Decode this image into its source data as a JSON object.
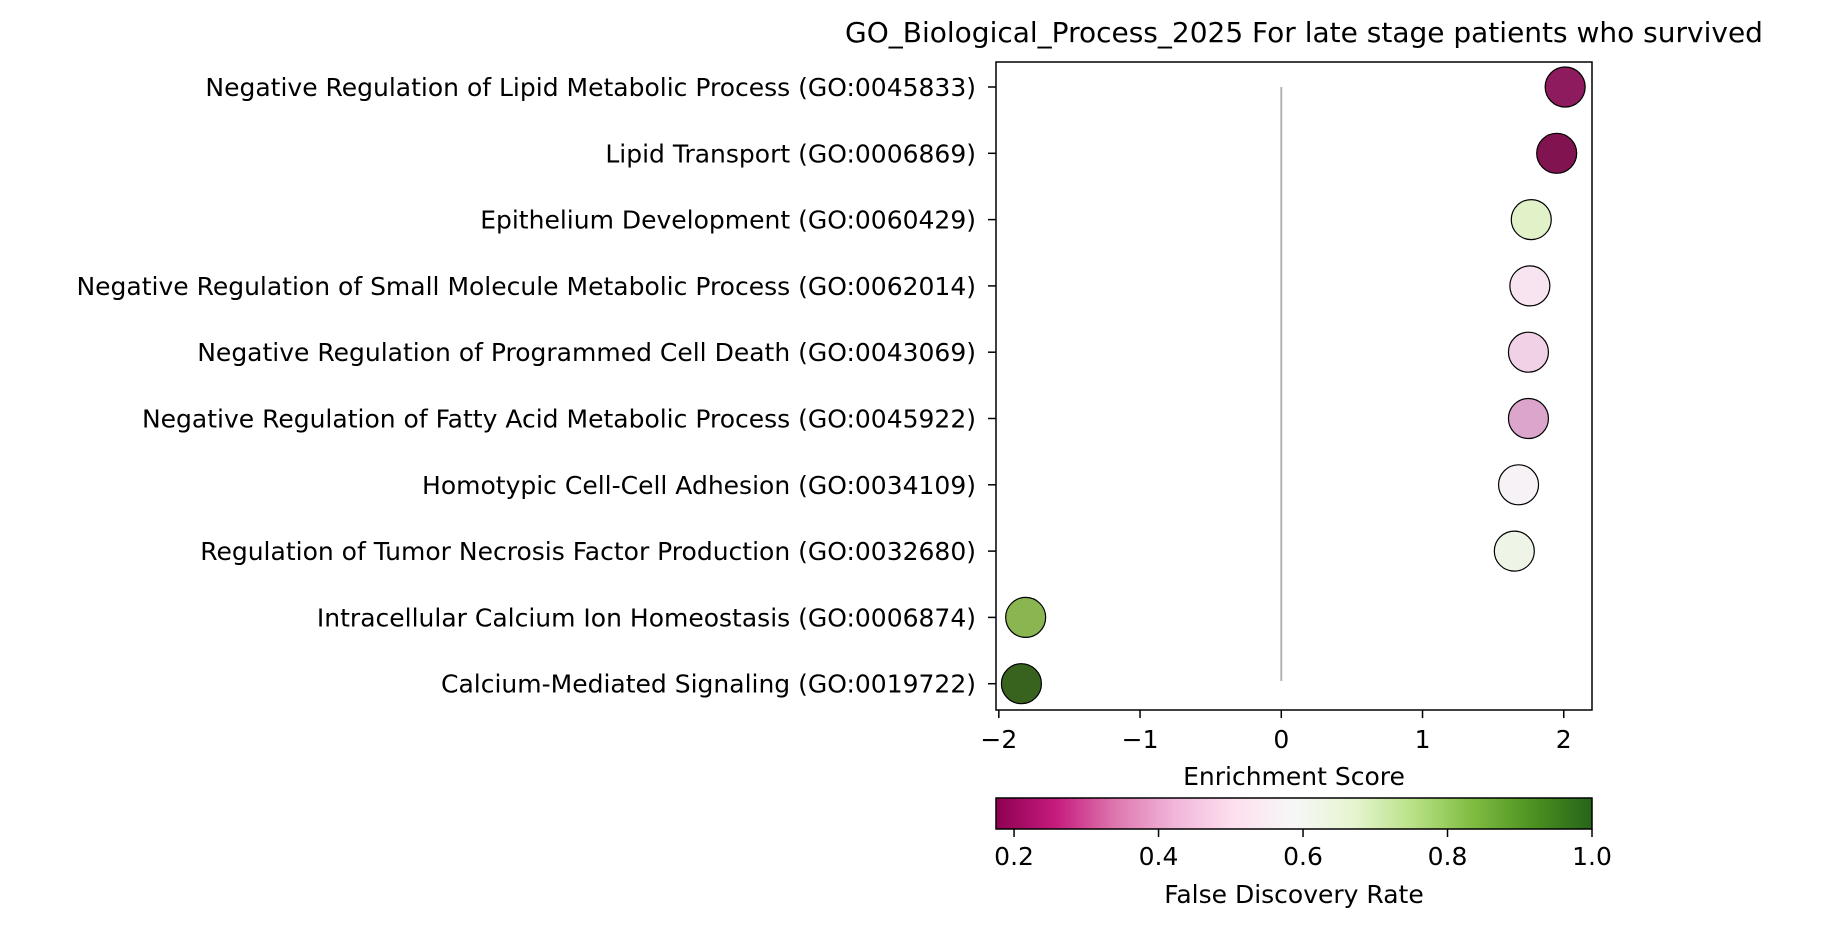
{
  "chart_data": {
    "type": "scatter",
    "title": "GO_Biological_Process_2025 For late stage patients who survived",
    "xlabel": "Enrichment Score",
    "ylabel": "",
    "xlim": [
      -2.02,
      2.2
    ],
    "xticks": [
      -2,
      -1,
      0,
      1,
      2
    ],
    "xtick_labels": [
      "−2",
      "−1",
      "0",
      "1",
      "2"
    ],
    "grid": false,
    "zero_line": true,
    "points": [
      {
        "term": "Negative Regulation of Lipid Metabolic Process (GO:0045833)",
        "score": 2.01,
        "fdr": 0.21,
        "color": "#8E1B5E"
      },
      {
        "term": "Lipid Transport (GO:0006869)",
        "score": 1.95,
        "fdr": 0.18,
        "color": "#811450"
      },
      {
        "term": "Epithelium Development (GO:0060429)",
        "score": 1.77,
        "fdr": 0.7,
        "color": "#E1F2C9"
      },
      {
        "term": "Negative Regulation of Small Molecule Metabolic Process (GO:0062014)",
        "score": 1.76,
        "fdr": 0.5,
        "color": "#F7E4F0"
      },
      {
        "term": "Negative Regulation of Programmed Cell Death (GO:0043069)",
        "score": 1.75,
        "fdr": 0.45,
        "color": "#F0D1E6"
      },
      {
        "term": "Negative Regulation of Fatty Acid Metabolic Process (GO:0045922)",
        "score": 1.75,
        "fdr": 0.4,
        "color": "#DCA6CC"
      },
      {
        "term": "Homotypic Cell-Cell Adhesion (GO:0034109)",
        "score": 1.68,
        "fdr": 0.56,
        "color": "#F6F2F5"
      },
      {
        "term": "Regulation of Tumor Necrosis Factor Production (GO:0032680)",
        "score": 1.65,
        "fdr": 0.62,
        "color": "#EFF5E6"
      },
      {
        "term": "Intracellular Calcium Ion Homeostasis (GO:0006874)",
        "score": -1.81,
        "fdr": 0.86,
        "color": "#8AB651"
      },
      {
        "term": "Calcium-Mediated Signaling (GO:0019722)",
        "score": -1.84,
        "fdr": 1.0,
        "color": "#38631F"
      }
    ],
    "colorbar": {
      "label": "False Discovery Rate",
      "range": [
        0.175,
        1.0
      ],
      "ticks": [
        0.2,
        0.4,
        0.6,
        0.8,
        1.0
      ],
      "tick_labels": [
        "0.2",
        "0.4",
        "0.6",
        "0.8",
        "1.0"
      ],
      "colormap": "PiYG",
      "stops": [
        "#8E0152",
        "#C51B7D",
        "#DE77AE",
        "#F1B6DA",
        "#FDE0EF",
        "#F7F7F7",
        "#E6F5D0",
        "#B8E186",
        "#7FBC41",
        "#4D9221",
        "#276419"
      ]
    }
  }
}
